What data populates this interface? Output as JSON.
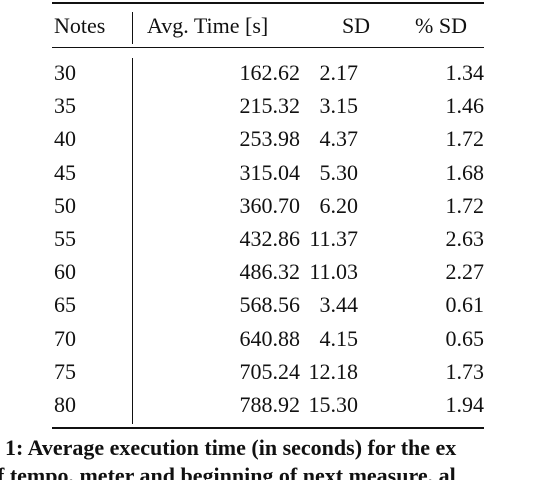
{
  "table": {
    "header": [
      "Notes",
      "Avg. Time [s]",
      "SD",
      "% SD"
    ],
    "rows": [
      [
        "30",
        "162.62",
        "2.17",
        "1.34"
      ],
      [
        "35",
        "215.32",
        "3.15",
        "1.46"
      ],
      [
        "40",
        "253.98",
        "4.37",
        "1.72"
      ],
      [
        "45",
        "315.04",
        "5.30",
        "1.68"
      ],
      [
        "50",
        "360.70",
        "6.20",
        "1.72"
      ],
      [
        "55",
        "432.86",
        "11.37",
        "2.63"
      ],
      [
        "60",
        "486.32",
        "11.03",
        "2.27"
      ],
      [
        "65",
        "568.56",
        "3.44",
        "0.61"
      ],
      [
        "70",
        "640.88",
        "4.15",
        "0.65"
      ],
      [
        "75",
        "705.24",
        "12.18",
        "1.73"
      ],
      [
        "80",
        "788.92",
        "15.30",
        "1.94"
      ]
    ]
  },
  "caption": [
    "1: Average execution time (in seconds) for the ex",
    "f tempo, meter and beginning of next measure, al"
  ]
}
